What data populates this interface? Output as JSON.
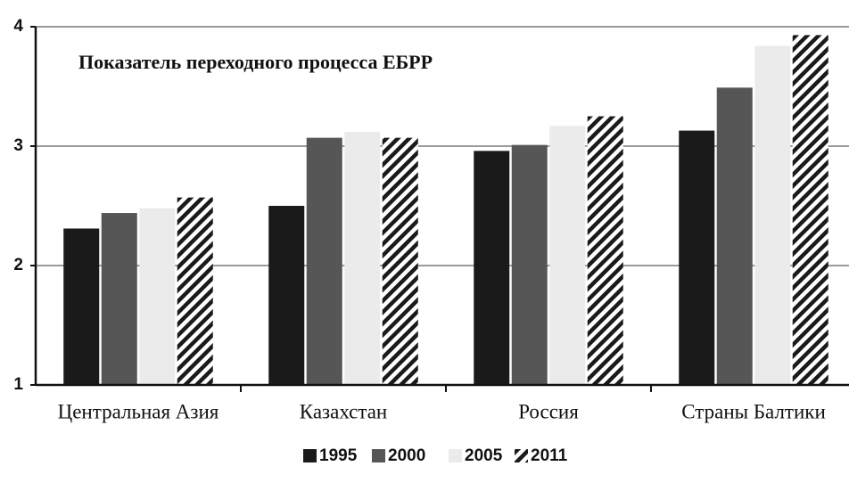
{
  "chart_data": {
    "type": "bar",
    "title": "Показатель переходного процесса ЕБРР",
    "categories": [
      "Центральная Азия",
      "Казахстан",
      "Россия",
      "Страны Балтики"
    ],
    "series": [
      {
        "name": "1995",
        "color": "#1a1a1a",
        "values": [
          2.31,
          2.5,
          2.96,
          3.13
        ]
      },
      {
        "name": "2000",
        "color": "#565656",
        "values": [
          2.44,
          3.07,
          3.01,
          3.49
        ]
      },
      {
        "name": "2005",
        "color": "#ebebeb",
        "values": [
          2.48,
          3.12,
          3.17,
          3.84
        ]
      },
      {
        "name": "2011",
        "color": "#1a1a1a",
        "hatch": true,
        "values": [
          2.57,
          3.07,
          3.25,
          3.93
        ]
      }
    ],
    "ylim": [
      1,
      4
    ],
    "yticks": [
      1,
      2,
      3,
      4
    ],
    "grid": true,
    "legend": "bottom"
  }
}
